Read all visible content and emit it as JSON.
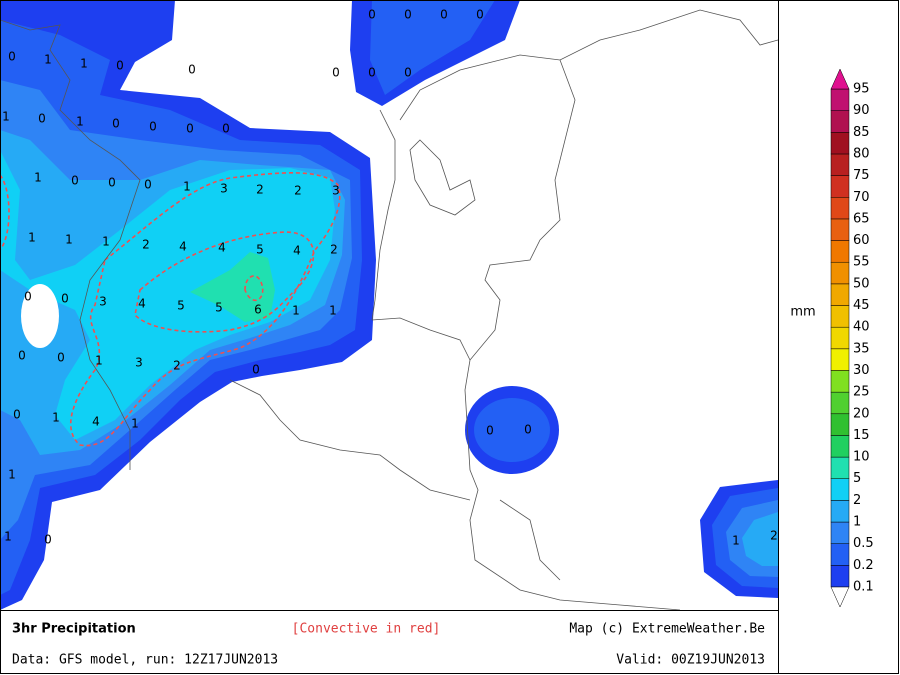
{
  "map_title": "3hr Precipitation",
  "convective_note": "[Convective in red]",
  "credit": "Map (c) ExtremeWeather.Be",
  "data_source": "Data: GFS model, run: 12Z17JUN2013",
  "valid_time": "Valid: 00Z19JUN2013",
  "map_labels": [
    0,
    1,
    1,
    0,
    0,
    0,
    0,
    0,
    0,
    0,
    0,
    0,
    1,
    0,
    1,
    0,
    0,
    0,
    0,
    1,
    0,
    0,
    0,
    1,
    3,
    2,
    2,
    3,
    1,
    1,
    1,
    2,
    4,
    4,
    5,
    4,
    2,
    0,
    0,
    3,
    4,
    5,
    5,
    6,
    1,
    1,
    0,
    0,
    1,
    3,
    2,
    0,
    0,
    1,
    4,
    1,
    0,
    0,
    1,
    1,
    0,
    1,
    2
  ],
  "legend": {
    "unit": "mm",
    "levels": [
      0.1,
      0.2,
      0.5,
      1,
      2,
      5,
      10,
      15,
      20,
      25,
      30,
      35,
      40,
      45,
      50,
      55,
      60,
      65,
      70,
      75,
      80,
      85,
      90,
      95
    ],
    "colors": [
      "#1e3ff0",
      "#2360f4",
      "#2f84f5",
      "#26aaf5",
      "#10d0f5",
      "#20e0b0",
      "#20d060",
      "#30c030",
      "#50d030",
      "#80e020",
      "#f0f000",
      "#f0d800",
      "#f0c000",
      "#f0a800",
      "#f09000",
      "#f07800",
      "#e86010",
      "#e04818",
      "#d03020",
      "#b82020",
      "#a01020",
      "#b01050",
      "#c01070"
    ],
    "over_color": "#e0108f",
    "under_color": "#ffffff"
  }
}
